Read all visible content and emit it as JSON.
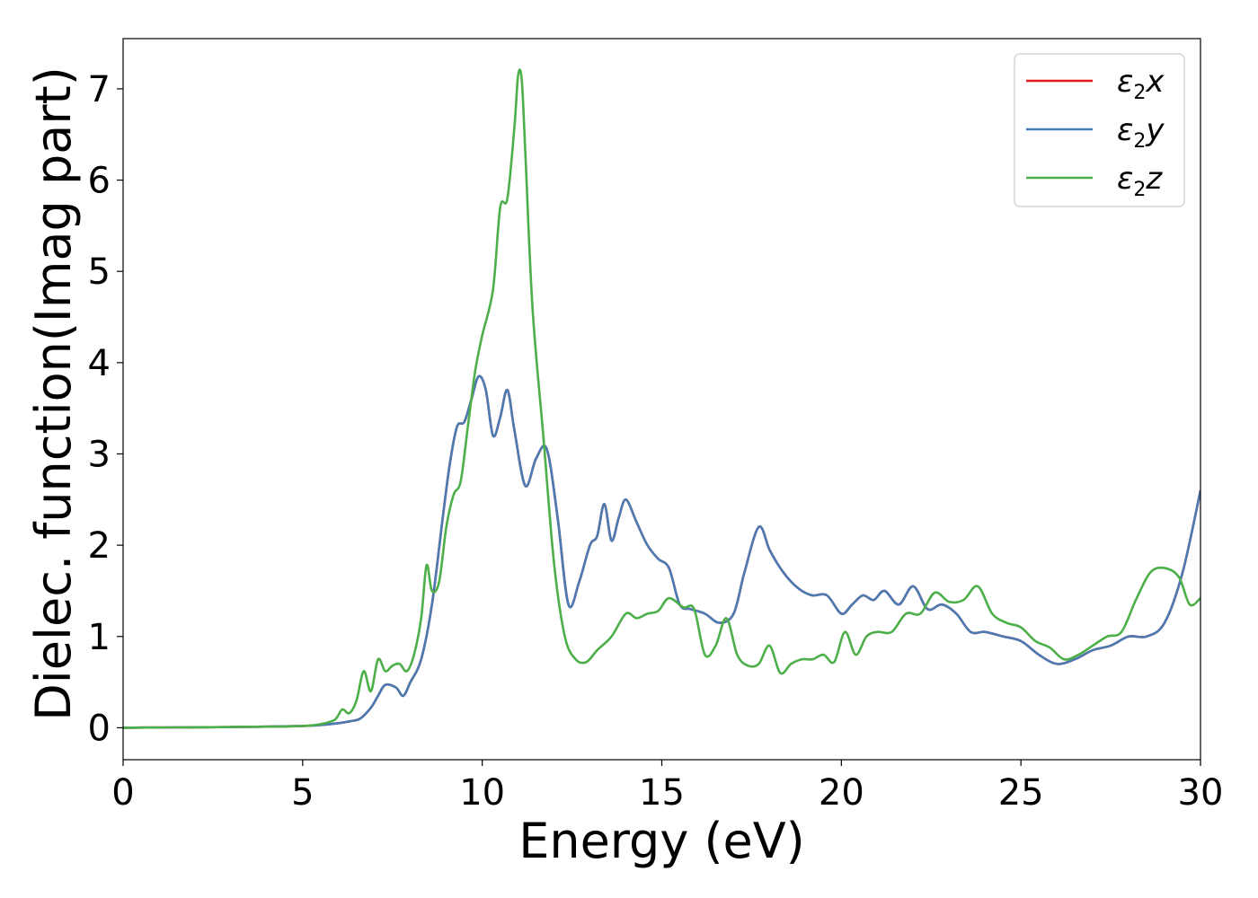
{
  "chart_data": {
    "type": "line",
    "xlabel": "Energy (eV)",
    "ylabel": "Dielec. function(Imag part)",
    "xlim": [
      0,
      30
    ],
    "ylim": [
      -0.35,
      7.55
    ],
    "xticks": [
      0,
      5,
      10,
      15,
      20,
      25,
      30
    ],
    "yticks": [
      0,
      1,
      2,
      3,
      4,
      5,
      6,
      7
    ],
    "grid": false,
    "legend_position": "top-right",
    "series": [
      {
        "name": "ε₂x",
        "legend_base": "ε",
        "legend_sub": "2",
        "legend_var": "x",
        "color": "#e41a1c",
        "x": [
          0,
          1,
          2,
          3,
          4,
          5,
          5.5,
          6,
          6.3,
          6.6,
          6.9,
          7.1,
          7.3,
          7.6,
          7.8,
          8,
          8.3,
          8.6,
          8.9,
          9.1,
          9.3,
          9.5,
          9.7,
          9.9,
          10.1,
          10.3,
          10.5,
          10.7,
          10.9,
          11.2,
          11.5,
          11.8,
          12.1,
          12.4,
          12.7,
          13,
          13.2,
          13.4,
          13.6,
          13.8,
          14,
          14.3,
          14.6,
          14.9,
          15.2,
          15.5,
          15.8,
          16.2,
          16.6,
          17,
          17.3,
          17.7,
          18,
          18.3,
          18.6,
          18.9,
          19.2,
          19.6,
          20,
          20.3,
          20.6,
          20.9,
          21.2,
          21.6,
          22,
          22.4,
          22.8,
          23.2,
          23.6,
          24,
          24.5,
          25,
          25.5,
          26,
          26.5,
          27,
          27.5,
          28,
          28.5,
          29,
          29.5,
          30
        ],
        "values": [
          0,
          0.003,
          0.005,
          0.008,
          0.012,
          0.02,
          0.03,
          0.05,
          0.07,
          0.1,
          0.22,
          0.35,
          0.47,
          0.44,
          0.35,
          0.5,
          0.75,
          1.35,
          2.3,
          2.9,
          3.3,
          3.35,
          3.6,
          3.85,
          3.7,
          3.2,
          3.4,
          3.7,
          3.25,
          2.65,
          2.95,
          3.05,
          2.3,
          1.35,
          1.6,
          2.0,
          2.1,
          2.45,
          2.05,
          2.3,
          2.5,
          2.25,
          2.0,
          1.85,
          1.75,
          1.35,
          1.3,
          1.25,
          1.15,
          1.25,
          1.7,
          2.2,
          1.95,
          1.75,
          1.6,
          1.5,
          1.45,
          1.45,
          1.25,
          1.35,
          1.45,
          1.4,
          1.5,
          1.35,
          1.55,
          1.3,
          1.35,
          1.25,
          1.05,
          1.05,
          1.0,
          0.95,
          0.8,
          0.7,
          0.75,
          0.85,
          0.9,
          1.0,
          1.0,
          1.15,
          1.7,
          2.6
        ]
      },
      {
        "name": "ε₂y",
        "legend_base": "ε",
        "legend_sub": "2",
        "legend_var": "y",
        "color": "#4a7bb2",
        "x": [
          0,
          1,
          2,
          3,
          4,
          5,
          5.5,
          6,
          6.3,
          6.6,
          6.9,
          7.1,
          7.3,
          7.6,
          7.8,
          8,
          8.3,
          8.6,
          8.9,
          9.1,
          9.3,
          9.5,
          9.7,
          9.9,
          10.1,
          10.3,
          10.5,
          10.7,
          10.9,
          11.2,
          11.5,
          11.8,
          12.1,
          12.4,
          12.7,
          13,
          13.2,
          13.4,
          13.6,
          13.8,
          14,
          14.3,
          14.6,
          14.9,
          15.2,
          15.5,
          15.8,
          16.2,
          16.6,
          17,
          17.3,
          17.7,
          18,
          18.3,
          18.6,
          18.9,
          19.2,
          19.6,
          20,
          20.3,
          20.6,
          20.9,
          21.2,
          21.6,
          22,
          22.4,
          22.8,
          23.2,
          23.6,
          24,
          24.5,
          25,
          25.5,
          26,
          26.5,
          27,
          27.5,
          28,
          28.5,
          29,
          29.5,
          30
        ],
        "values": [
          0,
          0.003,
          0.005,
          0.008,
          0.012,
          0.02,
          0.03,
          0.05,
          0.07,
          0.1,
          0.22,
          0.35,
          0.47,
          0.44,
          0.35,
          0.5,
          0.75,
          1.35,
          2.3,
          2.9,
          3.3,
          3.35,
          3.6,
          3.85,
          3.7,
          3.2,
          3.4,
          3.7,
          3.25,
          2.65,
          2.95,
          3.05,
          2.3,
          1.35,
          1.6,
          2.0,
          2.1,
          2.45,
          2.05,
          2.3,
          2.5,
          2.25,
          2.0,
          1.85,
          1.75,
          1.35,
          1.3,
          1.25,
          1.15,
          1.25,
          1.7,
          2.2,
          1.95,
          1.75,
          1.6,
          1.5,
          1.45,
          1.45,
          1.25,
          1.35,
          1.45,
          1.4,
          1.5,
          1.35,
          1.55,
          1.3,
          1.35,
          1.25,
          1.05,
          1.05,
          1.0,
          0.95,
          0.8,
          0.7,
          0.75,
          0.85,
          0.9,
          1.0,
          1.0,
          1.15,
          1.7,
          2.6
        ]
      },
      {
        "name": "ε₂z",
        "legend_base": "ε",
        "legend_sub": "2",
        "legend_var": "z",
        "color": "#4daf4a",
        "x": [
          0,
          1,
          2,
          3,
          4,
          5,
          5.5,
          5.9,
          6.1,
          6.3,
          6.5,
          6.7,
          6.9,
          7.1,
          7.3,
          7.5,
          7.7,
          7.9,
          8.1,
          8.3,
          8.45,
          8.6,
          8.8,
          9.0,
          9.2,
          9.4,
          9.6,
          9.8,
          10,
          10.3,
          10.5,
          10.7,
          10.9,
          11.0,
          11.1,
          11.2,
          11.4,
          11.7,
          12,
          12.3,
          12.6,
          12.9,
          13.2,
          13.6,
          14,
          14.3,
          14.6,
          14.9,
          15.2,
          15.6,
          15.9,
          16.2,
          16.5,
          16.8,
          17.1,
          17.4,
          17.7,
          18,
          18.3,
          18.6,
          18.9,
          19.2,
          19.5,
          19.8,
          20.1,
          20.4,
          20.7,
          21,
          21.4,
          21.8,
          22.2,
          22.6,
          23,
          23.4,
          23.8,
          24.2,
          24.6,
          25,
          25.4,
          25.8,
          26.2,
          26.6,
          27,
          27.4,
          27.8,
          28.2,
          28.6,
          29,
          29.4,
          29.7,
          30
        ],
        "values": [
          0,
          0.003,
          0.005,
          0.008,
          0.012,
          0.02,
          0.04,
          0.09,
          0.2,
          0.16,
          0.3,
          0.62,
          0.4,
          0.75,
          0.62,
          0.68,
          0.7,
          0.62,
          0.8,
          1.2,
          1.78,
          1.5,
          1.6,
          2.2,
          2.55,
          2.7,
          3.3,
          3.9,
          4.3,
          4.8,
          5.7,
          5.8,
          6.6,
          7.15,
          7.1,
          6.3,
          4.6,
          3.2,
          1.8,
          1.0,
          0.75,
          0.72,
          0.85,
          1.0,
          1.25,
          1.2,
          1.25,
          1.28,
          1.42,
          1.32,
          1.3,
          0.8,
          0.9,
          1.2,
          0.8,
          0.68,
          0.7,
          0.9,
          0.6,
          0.7,
          0.75,
          0.75,
          0.8,
          0.72,
          1.05,
          0.8,
          1.0,
          1.05,
          1.05,
          1.25,
          1.25,
          1.48,
          1.38,
          1.4,
          1.55,
          1.25,
          1.15,
          1.1,
          0.95,
          0.88,
          0.75,
          0.8,
          0.9,
          1.0,
          1.05,
          1.4,
          1.7,
          1.75,
          1.65,
          1.35,
          1.42
        ]
      }
    ]
  }
}
